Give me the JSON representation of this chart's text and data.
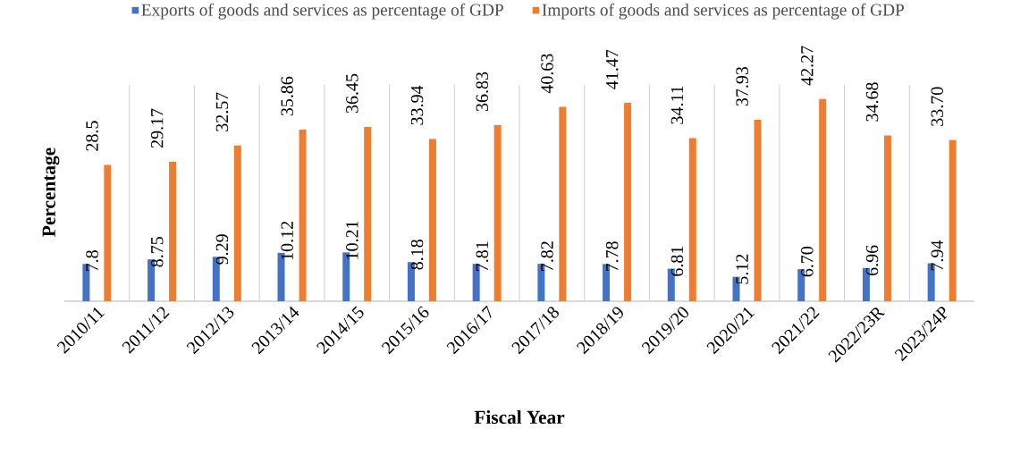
{
  "chart_data": {
    "type": "bar",
    "xlabel": "Fiscal Year",
    "ylabel": "Percentage",
    "categories": [
      "2010/11",
      "2011/12",
      "2012/13",
      "2013/14",
      "2014/15",
      "2015/16",
      "2016/17",
      "2017/18",
      "2018/19",
      "2019/20",
      "2020/21",
      "2021/22",
      "2022/23R",
      "2023/24P"
    ],
    "series": [
      {
        "name": "Exports of goods and services as percentage of GDP",
        "color": "#4472c4",
        "values": [
          7.8,
          8.75,
          9.29,
          10.12,
          10.21,
          8.18,
          7.81,
          7.82,
          7.78,
          6.81,
          5.12,
          6.7,
          6.96,
          7.94
        ],
        "value_labels": [
          "7.8",
          "8.75",
          "9.29",
          "10.12",
          "10.21",
          "8.18",
          "7.81",
          "7.82",
          "7.78",
          "6.81",
          "5.12",
          "6.70",
          "6.96",
          "7.94"
        ]
      },
      {
        "name": "Imports  of goods and services as percentage of GDP",
        "color": "#ed7d31",
        "values": [
          28.5,
          29.17,
          32.57,
          35.86,
          36.45,
          33.94,
          36.83,
          40.63,
          41.47,
          34.11,
          37.93,
          42.27,
          34.68,
          33.7
        ],
        "value_labels": [
          "28.5",
          "29.17",
          "32.57",
          "35.86",
          "36.45",
          "33.94",
          "36.83",
          "40.63",
          "41.47",
          "34.11",
          "37.93",
          "42.27",
          "34.68",
          "33.70"
        ]
      }
    ],
    "grid": "x",
    "legend": "top"
  }
}
